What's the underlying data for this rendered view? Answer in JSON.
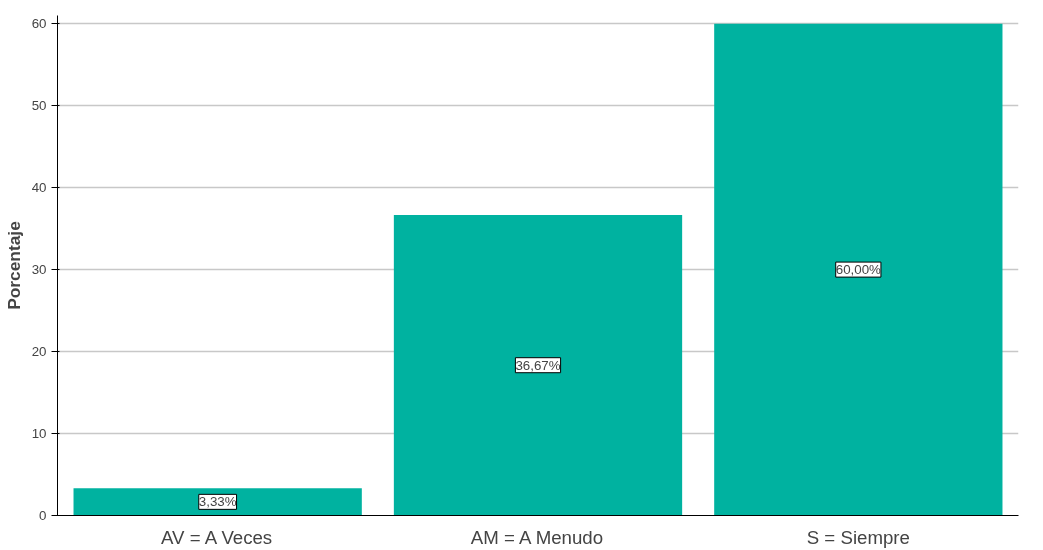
{
  "chart_data": {
    "type": "bar",
    "ylabel": "Porcentaje",
    "categories": [
      "AV = A Veces",
      "AM = A Menudo",
      "S = Siempre"
    ],
    "values": [
      3.33,
      36.67,
      60.0
    ],
    "value_labels": [
      "3,33%",
      "36,67%",
      "60,00%"
    ],
    "color": "#00b2a0",
    "ylim": [
      0,
      61
    ],
    "yticks": [
      0,
      10,
      20,
      30,
      40,
      50,
      60
    ],
    "grid": "y"
  }
}
